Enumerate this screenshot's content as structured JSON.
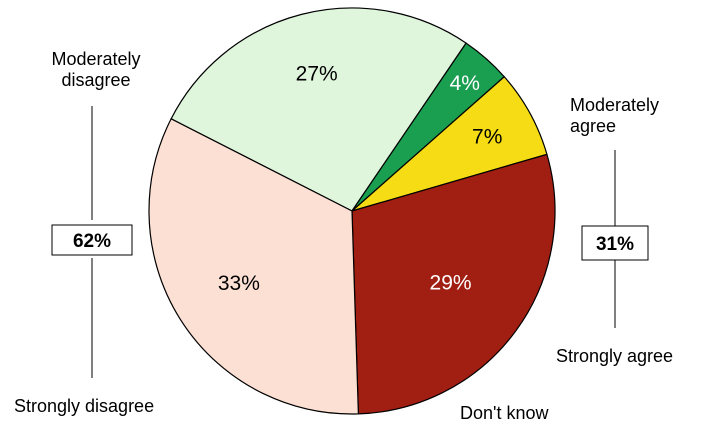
{
  "chart_data": {
    "type": "pie",
    "series": [
      {
        "values": [
          27,
          4,
          7,
          29,
          33
        ]
      }
    ],
    "categories": [
      "Moderately agree",
      "Strongly agree",
      "Don't know",
      "Strongly disagree",
      "Moderately disagree"
    ],
    "data_labels": [
      "27%",
      "4%",
      "7%",
      "29%",
      "33%"
    ],
    "colors": [
      "#dff5dc",
      "#1a9e50",
      "#f5dc14",
      "#a01e12",
      "#fde0d4"
    ],
    "label_colors": [
      "#000000",
      "#ffffff",
      "#000000",
      "#ffffff",
      "#000000"
    ]
  },
  "annotations": {
    "left_lines": [
      "Moderately",
      "disagree"
    ],
    "right_lines": [
      "Moderately",
      "agree"
    ],
    "strongly_agree": "Strongly agree",
    "strongly_disagree": "Strongly disagree",
    "dont_know": "Don't know",
    "agree_total": "31%",
    "disagree_total": "62%"
  }
}
